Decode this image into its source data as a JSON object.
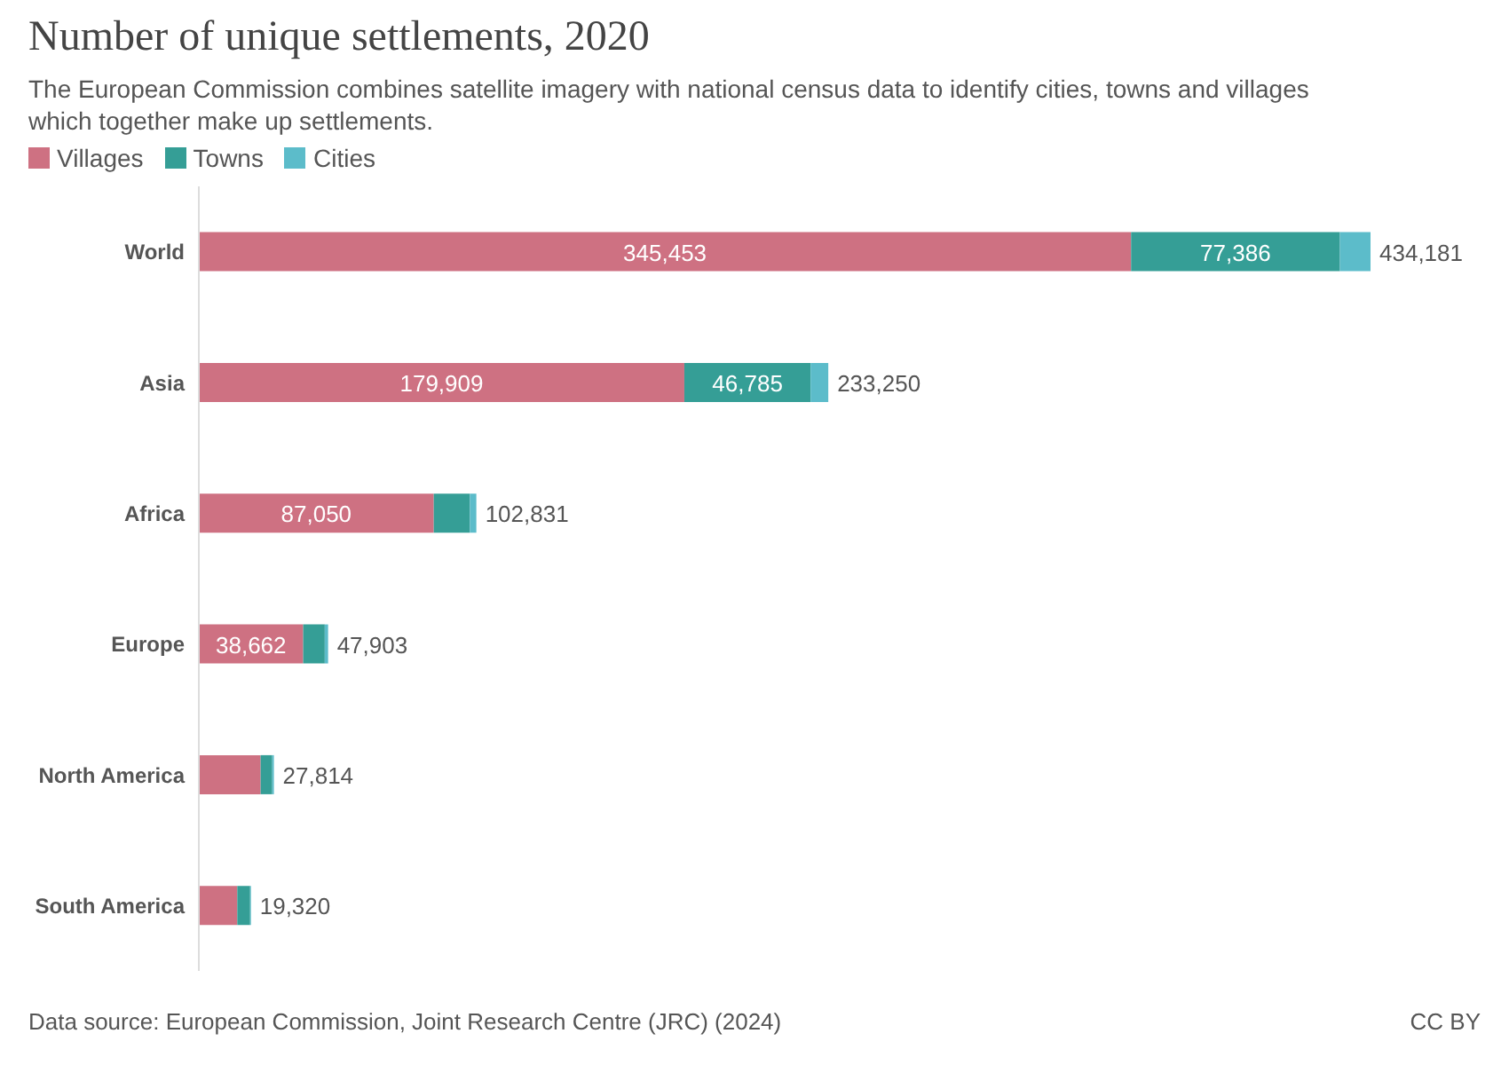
{
  "chart_data": {
    "type": "bar",
    "orientation": "horizontal",
    "stacked": true,
    "title": "Number of unique settlements, 2020",
    "subtitle": "The European Commission combines satellite imagery with national census data to identify cities, towns and villages which together make up settlements.",
    "categories": [
      "World",
      "Asia",
      "Africa",
      "Europe",
      "North America",
      "South America"
    ],
    "series": [
      {
        "name": "Villages",
        "color": "#ce7182",
        "values": [
          345453,
          179909,
          87050,
          38662,
          22900,
          14250
        ],
        "value_labels": [
          "345,453",
          "179,909",
          "87,050",
          "38,662",
          null,
          null
        ]
      },
      {
        "name": "Towns",
        "color": "#359e96",
        "values": [
          77386,
          46785,
          13400,
          8000,
          4300,
          4750
        ],
        "value_labels": [
          "77,386",
          "46,785",
          null,
          null,
          null,
          null
        ]
      },
      {
        "name": "Cities",
        "color": "#5cbcca",
        "values": [
          11342,
          6556,
          2381,
          1241,
          614,
          320
        ]
      }
    ],
    "totals": [
      "434,181",
      "233,250",
      "102,831",
      "47,903",
      "27,814",
      "19,320"
    ],
    "legend": "top left",
    "annotations": [
      "Data source: European Commission, Joint Research Centre (JRC) (2024)",
      "CC BY"
    ]
  }
}
